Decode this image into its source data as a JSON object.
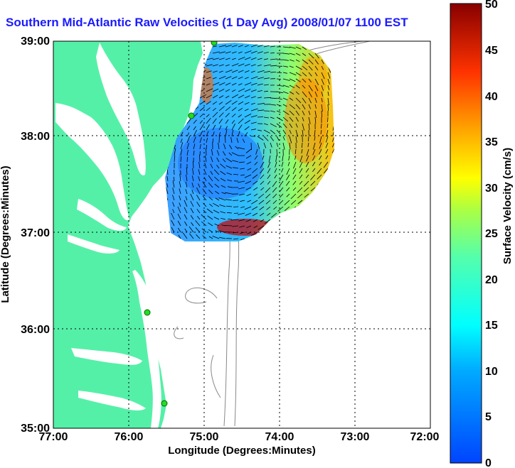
{
  "title": "Southern Mid-Atlantic Raw Velocities (1 Day Avg) 2008/01/07 1100 EST",
  "x_axis": {
    "label": "Longitude (Degrees:Minutes)",
    "ticks": [
      "77:00",
      "76:00",
      "75:00",
      "74:00",
      "73:00",
      "72:00"
    ]
  },
  "y_axis": {
    "label": "Latitude (Degrees:Minutes)",
    "ticks": [
      "39:00",
      "38:00",
      "37:00",
      "36:00",
      "35:00"
    ]
  },
  "colorbar": {
    "label": "Surface Velocity (cm/s)",
    "ticks": [
      "50",
      "45",
      "40",
      "35",
      "30",
      "25",
      "20",
      "15",
      "10",
      "5",
      "0"
    ]
  },
  "colors": {
    "land": "#55f0a8",
    "title": "#1a1aff",
    "station": "#22dd22"
  }
}
